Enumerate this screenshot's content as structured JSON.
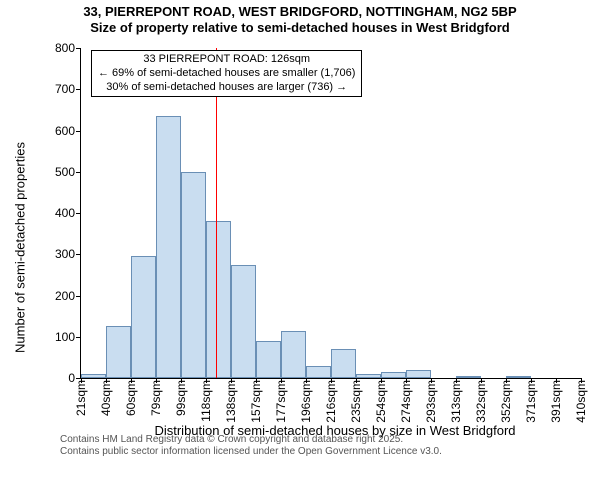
{
  "title": {
    "line1": "33, PIERREPONT ROAD, WEST BRIDGFORD, NOTTINGHAM, NG2 5BP",
    "line2": "Size of property relative to semi-detached houses in West Bridgford",
    "fontsize": 13
  },
  "chart": {
    "type": "histogram",
    "background_color": "#ffffff",
    "bar_fill": "#c9ddf0",
    "bar_border": "#6a8fb5",
    "bar_border_width": 1,
    "y": {
      "label": "Number of semi-detached properties",
      "min": 0,
      "max": 800,
      "tick_step": 100,
      "tick_fontsize": 12
    },
    "x": {
      "label": "Distribution of semi-detached houses by size in West Bridgford",
      "tick_fontsize": 12,
      "bin_start": 21,
      "bin_width_sqm": 19.5,
      "tick_labels": [
        "21sqm",
        "40sqm",
        "60sqm",
        "79sqm",
        "99sqm",
        "118sqm",
        "138sqm",
        "157sqm",
        "177sqm",
        "196sqm",
        "216sqm",
        "235sqm",
        "254sqm",
        "274sqm",
        "293sqm",
        "313sqm",
        "332sqm",
        "352sqm",
        "371sqm",
        "391sqm",
        "410sqm"
      ]
    },
    "bars": [
      10,
      125,
      295,
      635,
      500,
      380,
      275,
      90,
      115,
      30,
      70,
      10,
      15,
      20,
      0,
      5,
      0,
      5,
      0,
      0
    ],
    "reference_line": {
      "value_sqm": 126,
      "color": "#ff0000",
      "width": 1
    },
    "annotation": {
      "line1": "33 PIERREPONT ROAD: 126sqm",
      "line2": "← 69% of semi-detached houses are smaller (1,706)",
      "line3": "30% of semi-detached houses are larger (736) →",
      "border_color": "#000000",
      "background": "#ffffff",
      "fontsize": 11
    }
  },
  "footer": {
    "line1": "Contains HM Land Registry data © Crown copyright and database right 2025.",
    "line2": "Contains public sector information licensed under the Open Government Licence v3.0.",
    "color": "#555555",
    "fontsize": 10
  }
}
